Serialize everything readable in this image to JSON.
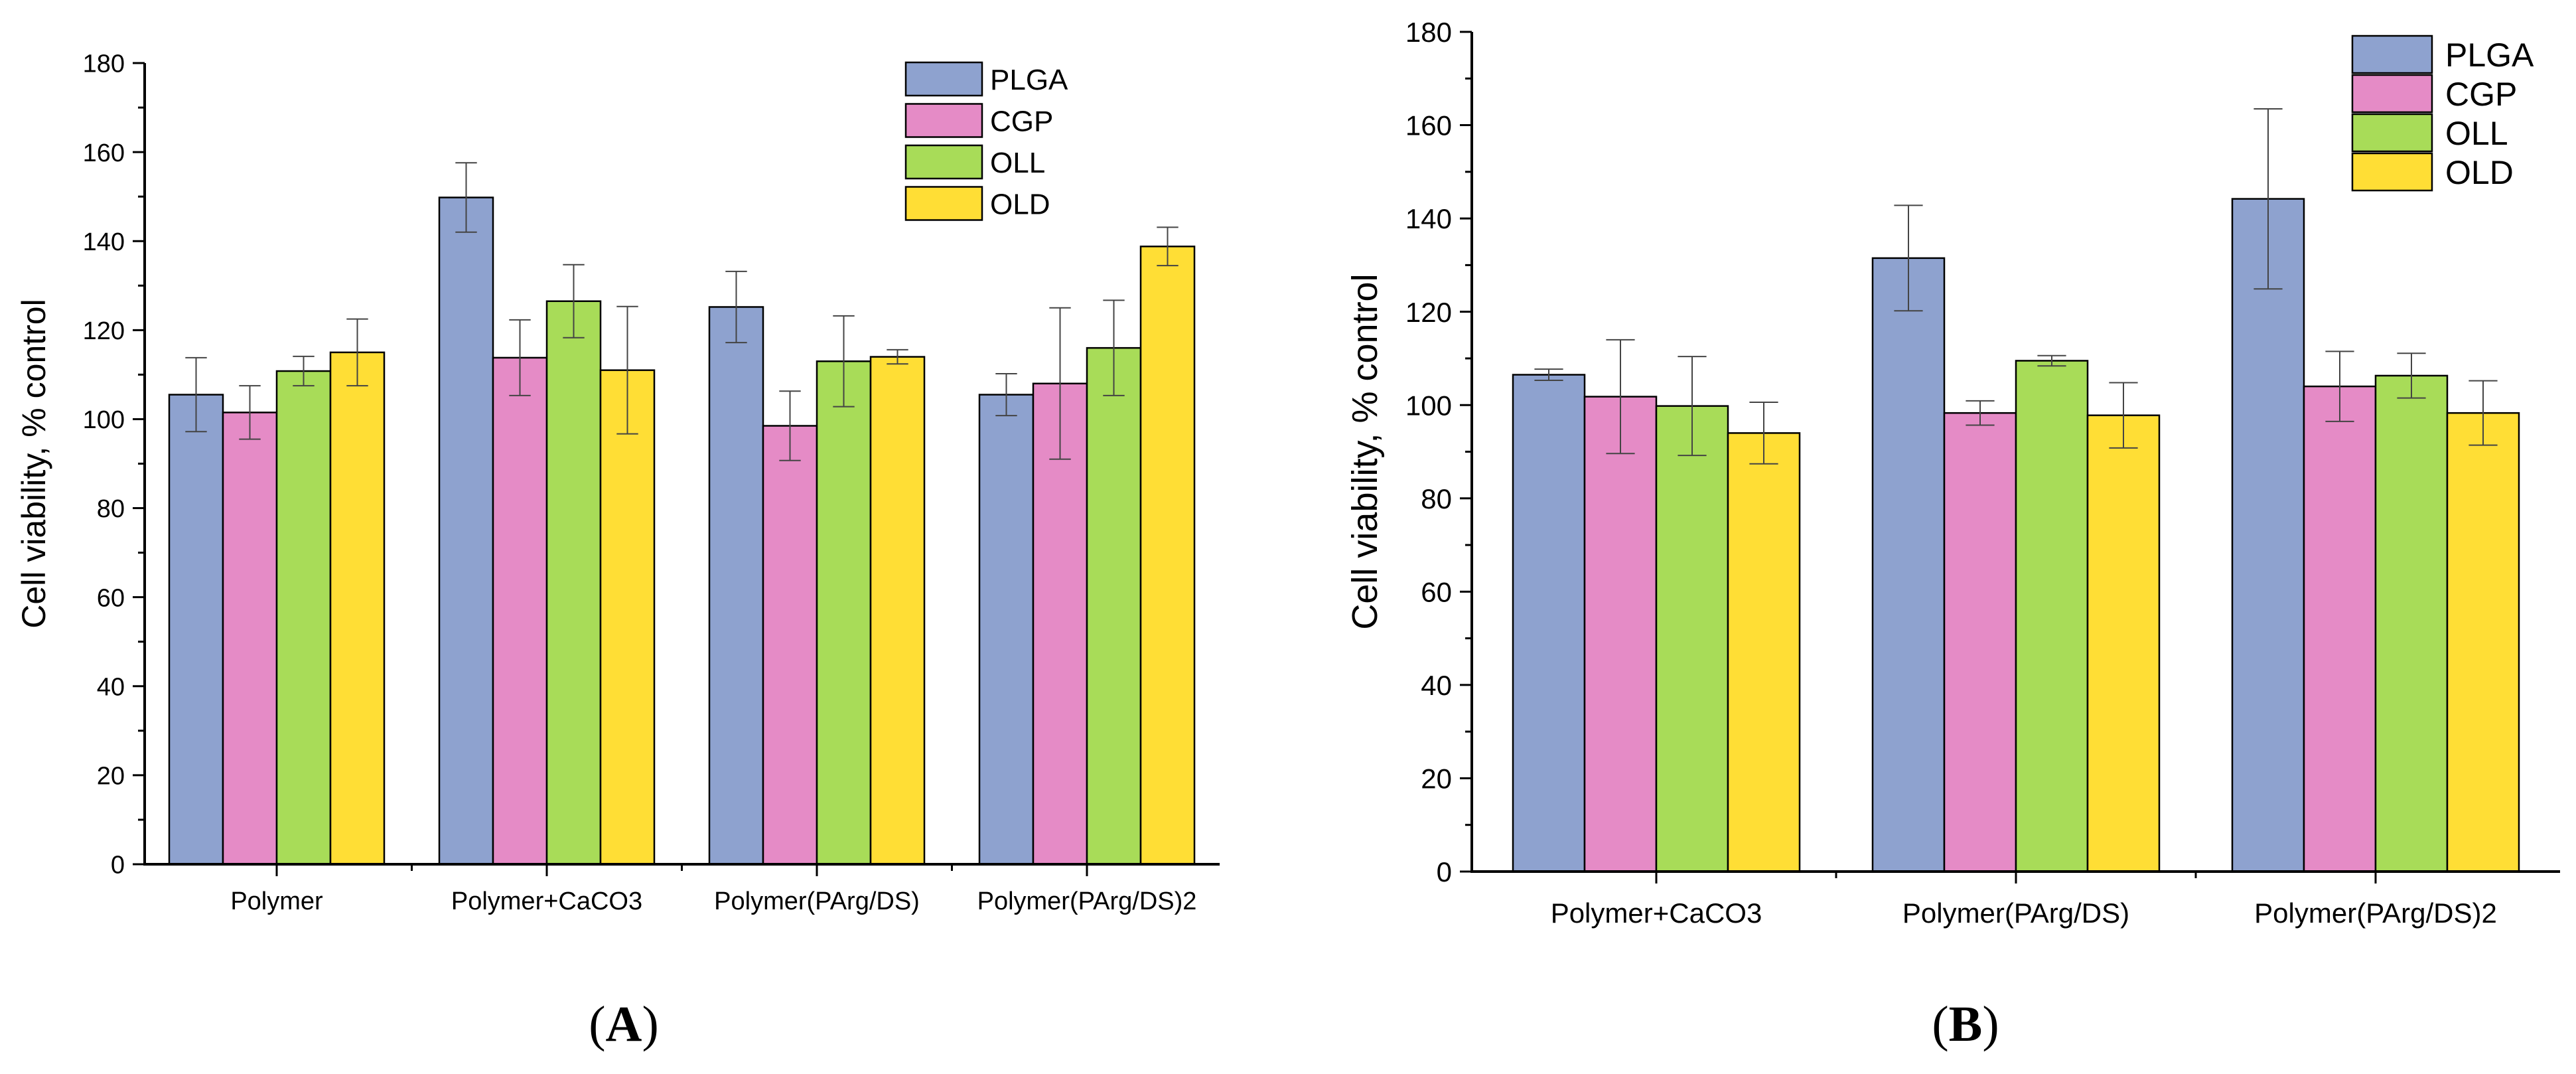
{
  "colors": {
    "PLGA": "#8ea2cf",
    "CGP": "#e58bc6",
    "OLL": "#a8dc58",
    "OLD": "#ffde35"
  },
  "panels": [
    {
      "label": "A"
    },
    {
      "label": "B"
    }
  ],
  "chart_data": [
    {
      "type": "bar",
      "panel": "A",
      "ylabel": "Cell viability, % control",
      "xlabel": "",
      "ylim": [
        0,
        180
      ],
      "yticks": [
        0,
        20,
        40,
        60,
        80,
        100,
        120,
        140,
        160,
        180
      ],
      "legend": "top-right",
      "grid": false,
      "categories": [
        "Polymer",
        "Polymer+CaCO3",
        "Polymer(PArg/DS)",
        "Polymer(PArg/DS)2"
      ],
      "series": [
        {
          "name": "PLGA",
          "values": [
            105.5,
            149.8,
            125.2,
            105.5
          ],
          "errors": [
            8.3,
            7.8,
            8.0,
            4.7
          ]
        },
        {
          "name": "CGP",
          "values": [
            101.5,
            113.8,
            98.5,
            108.0
          ],
          "errors": [
            6.0,
            8.5,
            7.8,
            17.0
          ]
        },
        {
          "name": "OLL",
          "values": [
            110.8,
            126.5,
            113.0,
            116.0
          ],
          "errors": [
            3.3,
            8.2,
            10.2,
            10.7
          ]
        },
        {
          "name": "OLD",
          "values": [
            115.0,
            111.0,
            114.0,
            138.8
          ],
          "errors": [
            7.5,
            14.3,
            1.6,
            4.3
          ]
        }
      ]
    },
    {
      "type": "bar",
      "panel": "B",
      "ylabel": "Cell viability, % control",
      "xlabel": "",
      "ylim": [
        0,
        180
      ],
      "yticks": [
        0,
        20,
        40,
        60,
        80,
        100,
        120,
        140,
        160,
        180
      ],
      "legend": "top-right",
      "grid": false,
      "categories": [
        "Polymer+CaCO3",
        "Polymer(PArg/DS)",
        "Polymer(PArg/DS)2"
      ],
      "series": [
        {
          "name": "PLGA",
          "values": [
            106.5,
            131.5,
            144.2
          ],
          "errors": [
            1.2,
            11.3,
            19.3
          ]
        },
        {
          "name": "CGP",
          "values": [
            101.8,
            98.3,
            104.0
          ],
          "errors": [
            12.2,
            2.6,
            7.5
          ]
        },
        {
          "name": "OLL",
          "values": [
            99.8,
            109.5,
            106.3
          ],
          "errors": [
            10.6,
            1.1,
            4.8
          ]
        },
        {
          "name": "OLD",
          "values": [
            94.0,
            97.8,
            98.3
          ],
          "errors": [
            6.6,
            7.0,
            6.9
          ]
        }
      ]
    }
  ]
}
